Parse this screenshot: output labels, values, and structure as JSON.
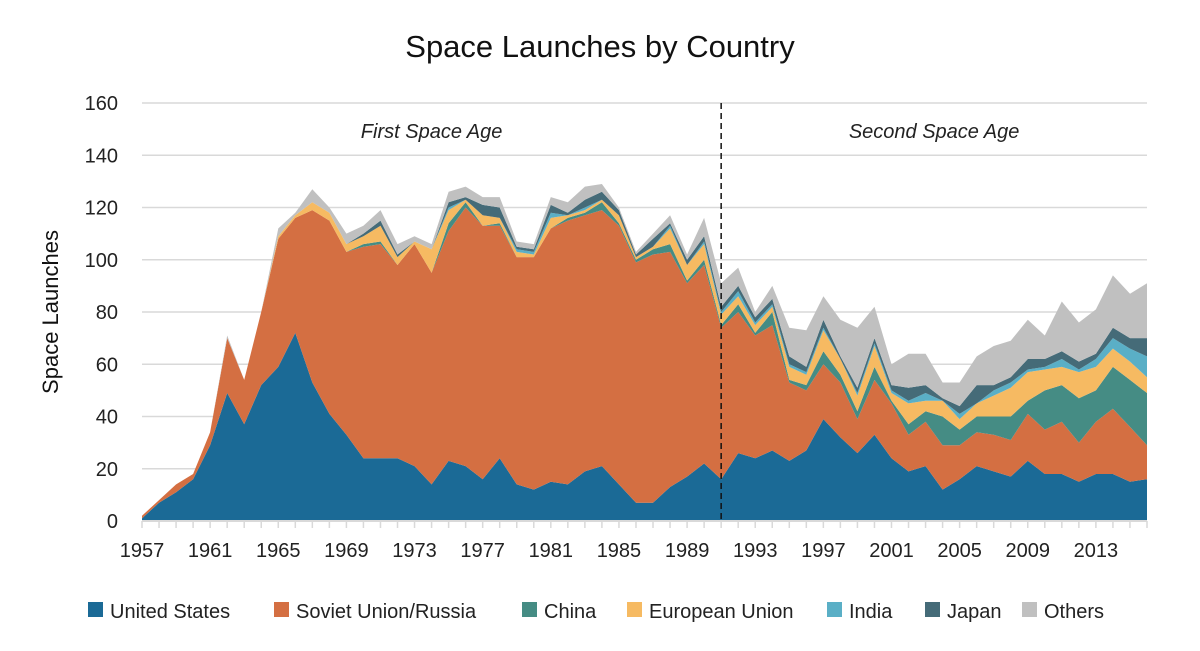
{
  "chart_data": {
    "type": "area",
    "stacked": true,
    "title": "Space Launches by Country",
    "xlabel": "",
    "ylabel": "Space Launches",
    "ylim": [
      0,
      160
    ],
    "yticks": [
      0,
      20,
      40,
      60,
      80,
      100,
      120,
      140,
      160
    ],
    "xlim": [
      1957,
      2016
    ],
    "xtick_labels": [
      "1957",
      "1961",
      "1965",
      "1969",
      "1973",
      "1977",
      "1981",
      "1985",
      "1989",
      "1993",
      "1997",
      "2001",
      "2005",
      "2009",
      "2013"
    ],
    "grid": "horizontal",
    "legend_position": "bottom",
    "annotations": [
      {
        "text": "First Space Age",
        "x": 1974
      },
      {
        "text": "Second Space Age",
        "x": 2003.5
      }
    ],
    "vertical_line": {
      "x": 1991,
      "style": "dashed"
    },
    "x": [
      1957,
      1958,
      1959,
      1960,
      1961,
      1962,
      1963,
      1964,
      1965,
      1966,
      1967,
      1968,
      1969,
      1970,
      1971,
      1972,
      1973,
      1974,
      1975,
      1976,
      1977,
      1978,
      1979,
      1980,
      1981,
      1982,
      1983,
      1984,
      1985,
      1986,
      1987,
      1988,
      1989,
      1990,
      1991,
      1992,
      1993,
      1994,
      1995,
      1996,
      1997,
      1998,
      1999,
      2000,
      2001,
      2002,
      2003,
      2004,
      2005,
      2006,
      2007,
      2008,
      2009,
      2010,
      2011,
      2012,
      2013,
      2014,
      2015,
      2016
    ],
    "series": [
      {
        "name": "United States",
        "color": "#1b6a96",
        "values": [
          1,
          7,
          11,
          16,
          29,
          49,
          37,
          52,
          59,
          72,
          53,
          41,
          33,
          24,
          24,
          24,
          21,
          14,
          23,
          21,
          16,
          24,
          14,
          12,
          15,
          14,
          19,
          21,
          14,
          7,
          7,
          13,
          17,
          22,
          16,
          26,
          24,
          27,
          23,
          27,
          39,
          32,
          26,
          33,
          24,
          19,
          21,
          12,
          16,
          21,
          19,
          17,
          23,
          18,
          18,
          15,
          18,
          18,
          15,
          16
        ]
      },
      {
        "name": "Soviet Union/Russia",
        "color": "#d46f42",
        "values": [
          1,
          1,
          3,
          2,
          5,
          21,
          17,
          28,
          49,
          44,
          66,
          74,
          70,
          81,
          82,
          74,
          85,
          81,
          88,
          99,
          97,
          89,
          87,
          89,
          97,
          101,
          98,
          98,
          99,
          92,
          95,
          90,
          74,
          76,
          58,
          54,
          47,
          48,
          30,
          23,
          21,
          21,
          13,
          21,
          21,
          14,
          17,
          17,
          13,
          13,
          14,
          14,
          18,
          17,
          20,
          15,
          20,
          25,
          21,
          13
        ]
      },
      {
        "name": "China",
        "color": "#458c84",
        "values": [
          0,
          0,
          0,
          0,
          0,
          0,
          0,
          0,
          0,
          0,
          0,
          0,
          0,
          1,
          1,
          0,
          0,
          0,
          3,
          2,
          0,
          1,
          0,
          0,
          0,
          1,
          1,
          3,
          1,
          1,
          2,
          3,
          1,
          2,
          1,
          3,
          1,
          5,
          1,
          2,
          5,
          3,
          3,
          5,
          1,
          4,
          4,
          11,
          6,
          6,
          7,
          9,
          5,
          15,
          14,
          17,
          12,
          16,
          18,
          20
        ]
      },
      {
        "name": "European Union",
        "color": "#f6ba62",
        "values": [
          0,
          0,
          0,
          0,
          0,
          0,
          0,
          0,
          1,
          1,
          3,
          3,
          3,
          3,
          6,
          3,
          1,
          9,
          5,
          1,
          4,
          2,
          2,
          1,
          4,
          1,
          1,
          1,
          3,
          1,
          1,
          6,
          6,
          6,
          4,
          3,
          3,
          2,
          5,
          4,
          8,
          6,
          6,
          8,
          3,
          8,
          4,
          6,
          4,
          5,
          8,
          11,
          11,
          8,
          7,
          10,
          9,
          7,
          7,
          6
        ]
      },
      {
        "name": "India",
        "color": "#5aafc6",
        "values": [
          0,
          0,
          0,
          0,
          0,
          0,
          0,
          0,
          0,
          0,
          0,
          0,
          0,
          0,
          0,
          0,
          0,
          0,
          1,
          0,
          0,
          0,
          1,
          1,
          2,
          0,
          1,
          0,
          0,
          0,
          0,
          1,
          0,
          1,
          1,
          2,
          1,
          1,
          1,
          1,
          1,
          0,
          1,
          1,
          1,
          1,
          3,
          0,
          2,
          0,
          2,
          2,
          1,
          1,
          3,
          1,
          3,
          4,
          5,
          8
        ]
      },
      {
        "name": "Japan",
        "color": "#456b78",
        "values": [
          0,
          0,
          0,
          0,
          0,
          0,
          0,
          0,
          0,
          0,
          0,
          0,
          0,
          1,
          2,
          1,
          0,
          0,
          2,
          1,
          4,
          4,
          1,
          1,
          3,
          1,
          3,
          3,
          2,
          1,
          3,
          1,
          2,
          2,
          2,
          2,
          2,
          2,
          3,
          2,
          3,
          1,
          2,
          2,
          2,
          5,
          3,
          1,
          3,
          7,
          2,
          2,
          4,
          3,
          3,
          3,
          2,
          4,
          4,
          7
        ]
      },
      {
        "name": "Others",
        "color": "#c0c0c0",
        "values": [
          0,
          0,
          0,
          0,
          0,
          1,
          0,
          0,
          3,
          1,
          5,
          2,
          4,
          3,
          4,
          4,
          2,
          2,
          4,
          4,
          3,
          4,
          2,
          2,
          3,
          4,
          5,
          3,
          1,
          1,
          2,
          3,
          2,
          7,
          9,
          7,
          2,
          5,
          11,
          14,
          9,
          14,
          23,
          12,
          8,
          13,
          12,
          6,
          9,
          11,
          15,
          14,
          15,
          9,
          19,
          15,
          17,
          20,
          17,
          21
        ]
      }
    ]
  }
}
